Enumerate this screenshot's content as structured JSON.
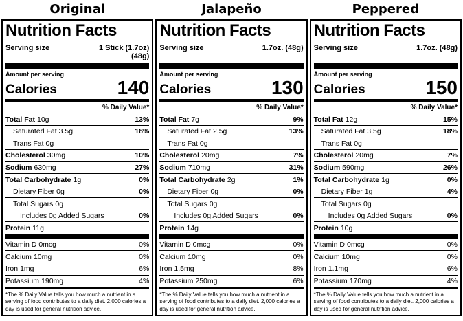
{
  "colors": {
    "text": "#000000",
    "background": "#ffffff",
    "divider": "#000000"
  },
  "labels": [
    {
      "title": "Original",
      "heading": "Nutrition Facts",
      "serving_size_label": "Serving size",
      "serving_size_value": "1 Stick (1.7oz)\n(48g)",
      "amount_per_serving": "Amount per serving",
      "calories_label": "Calories",
      "calories_value": "140",
      "daily_value_header": "% Daily Value*",
      "nutrients": [
        {
          "name": "Total Fat",
          "amount": "10g",
          "dv": "13%",
          "bold": true,
          "indent": 0
        },
        {
          "name": "Saturated Fat",
          "amount": "3.5g",
          "dv": "18%",
          "bold": false,
          "indent": 1
        },
        {
          "name": "Trans Fat",
          "amount": "0g",
          "dv": "",
          "bold": false,
          "indent": 1
        },
        {
          "name": "Cholesterol",
          "amount": "30mg",
          "dv": "10%",
          "bold": true,
          "indent": 0
        },
        {
          "name": "Sodium",
          "amount": "630mg",
          "dv": "27%",
          "bold": true,
          "indent": 0
        },
        {
          "name": "Total Carbohydrate",
          "amount": "1g",
          "dv": "0%",
          "bold": true,
          "indent": 0
        },
        {
          "name": "Dietary Fiber",
          "amount": "0g",
          "dv": "0%",
          "bold": false,
          "indent": 1
        },
        {
          "name": "Total Sugars",
          "amount": "0g",
          "dv": "",
          "bold": false,
          "indent": 1
        },
        {
          "name": "Includes 0g Added Sugars",
          "amount": "",
          "dv": "0%",
          "bold": false,
          "indent": 2
        },
        {
          "name": "Protein",
          "amount": "11g",
          "dv": "",
          "bold": true,
          "indent": 0
        }
      ],
      "vitamins": [
        {
          "name": "Vitamin D",
          "amount": "0mcg",
          "dv": "0%"
        },
        {
          "name": "Calcium",
          "amount": "10mg",
          "dv": "0%"
        },
        {
          "name": "Iron",
          "amount": "1mg",
          "dv": "6%"
        },
        {
          "name": "Potassium",
          "amount": "190mg",
          "dv": "4%"
        }
      ],
      "footnote": "*The % Daily Value tells you how much a nutrient in a serving of food contributes to a daily diet. 2,000 calories a day is used for general nutrition advice."
    },
    {
      "title": "Jalapeño",
      "heading": "Nutrition Facts",
      "serving_size_label": "Serving size",
      "serving_size_value": "1.7oz. (48g)",
      "amount_per_serving": "Amount per serving",
      "calories_label": "Calories",
      "calories_value": "130",
      "daily_value_header": "% Daily Value*",
      "nutrients": [
        {
          "name": "Total Fat",
          "amount": "7g",
          "dv": "9%",
          "bold": true,
          "indent": 0
        },
        {
          "name": "Saturated Fat",
          "amount": "2.5g",
          "dv": "13%",
          "bold": false,
          "indent": 1
        },
        {
          "name": "Trans Fat",
          "amount": "0g",
          "dv": "",
          "bold": false,
          "indent": 1
        },
        {
          "name": "Cholesterol",
          "amount": "20mg",
          "dv": "7%",
          "bold": true,
          "indent": 0
        },
        {
          "name": "Sodium",
          "amount": "710mg",
          "dv": "31%",
          "bold": true,
          "indent": 0
        },
        {
          "name": "Total Carbohydrate",
          "amount": "2g",
          "dv": "1%",
          "bold": true,
          "indent": 0
        },
        {
          "name": "Dietary Fiber",
          "amount": "0g",
          "dv": "0%",
          "bold": false,
          "indent": 1
        },
        {
          "name": "Total Sugars",
          "amount": "0g",
          "dv": "",
          "bold": false,
          "indent": 1
        },
        {
          "name": "Includes 0g Added Sugars",
          "amount": "",
          "dv": "0%",
          "bold": false,
          "indent": 2
        },
        {
          "name": "Protein",
          "amount": "14g",
          "dv": "",
          "bold": true,
          "indent": 0
        }
      ],
      "vitamins": [
        {
          "name": "Vitamin D",
          "amount": "0mcg",
          "dv": "0%"
        },
        {
          "name": "Calcium",
          "amount": "10mg",
          "dv": "0%"
        },
        {
          "name": "Iron",
          "amount": "1.5mg",
          "dv": "8%"
        },
        {
          "name": "Potassium",
          "amount": "250mg",
          "dv": "6%"
        }
      ],
      "footnote": "*The % Daily Value tells you how much a nutrient in a serving of food contributes to a daily diet. 2,000 calories a day is used for general nutrition advice."
    },
    {
      "title": "Peppered",
      "heading": "Nutrition Facts",
      "serving_size_label": "Serving size",
      "serving_size_value": "1.7oz. (48g)",
      "amount_per_serving": "Amount per serving",
      "calories_label": "Calories",
      "calories_value": "150",
      "daily_value_header": "% Daily Value*",
      "nutrients": [
        {
          "name": "Total Fat",
          "amount": "12g",
          "dv": "15%",
          "bold": true,
          "indent": 0
        },
        {
          "name": "Saturated Fat",
          "amount": "3.5g",
          "dv": "18%",
          "bold": false,
          "indent": 1
        },
        {
          "name": "Trans Fat",
          "amount": "0g",
          "dv": "",
          "bold": false,
          "indent": 1
        },
        {
          "name": "Cholesterol",
          "amount": "20mg",
          "dv": "7%",
          "bold": true,
          "indent": 0
        },
        {
          "name": "Sodium",
          "amount": "590mg",
          "dv": "26%",
          "bold": true,
          "indent": 0
        },
        {
          "name": "Total Carbohydrate",
          "amount": "1g",
          "dv": "0%",
          "bold": true,
          "indent": 0
        },
        {
          "name": "Dietary Fiber",
          "amount": "1g",
          "dv": "4%",
          "bold": false,
          "indent": 1
        },
        {
          "name": "Total Sugars",
          "amount": "0g",
          "dv": "",
          "bold": false,
          "indent": 1
        },
        {
          "name": "Includes 0g Added Sugars",
          "amount": "",
          "dv": "0%",
          "bold": false,
          "indent": 2
        },
        {
          "name": "Protein",
          "amount": "10g",
          "dv": "",
          "bold": true,
          "indent": 0
        }
      ],
      "vitamins": [
        {
          "name": "Vitamin D",
          "amount": "0mcg",
          "dv": "0%"
        },
        {
          "name": "Calcium",
          "amount": "10mg",
          "dv": "0%"
        },
        {
          "name": "Iron",
          "amount": "1.1mg",
          "dv": "6%"
        },
        {
          "name": "Potassium",
          "amount": "170mg",
          "dv": "4%"
        }
      ],
      "footnote": "*The % Daily Value tells you how much a nutrient in a serving of food contributes to a daily diet. 2,000 calories a day is used for general nutrition advice."
    }
  ]
}
